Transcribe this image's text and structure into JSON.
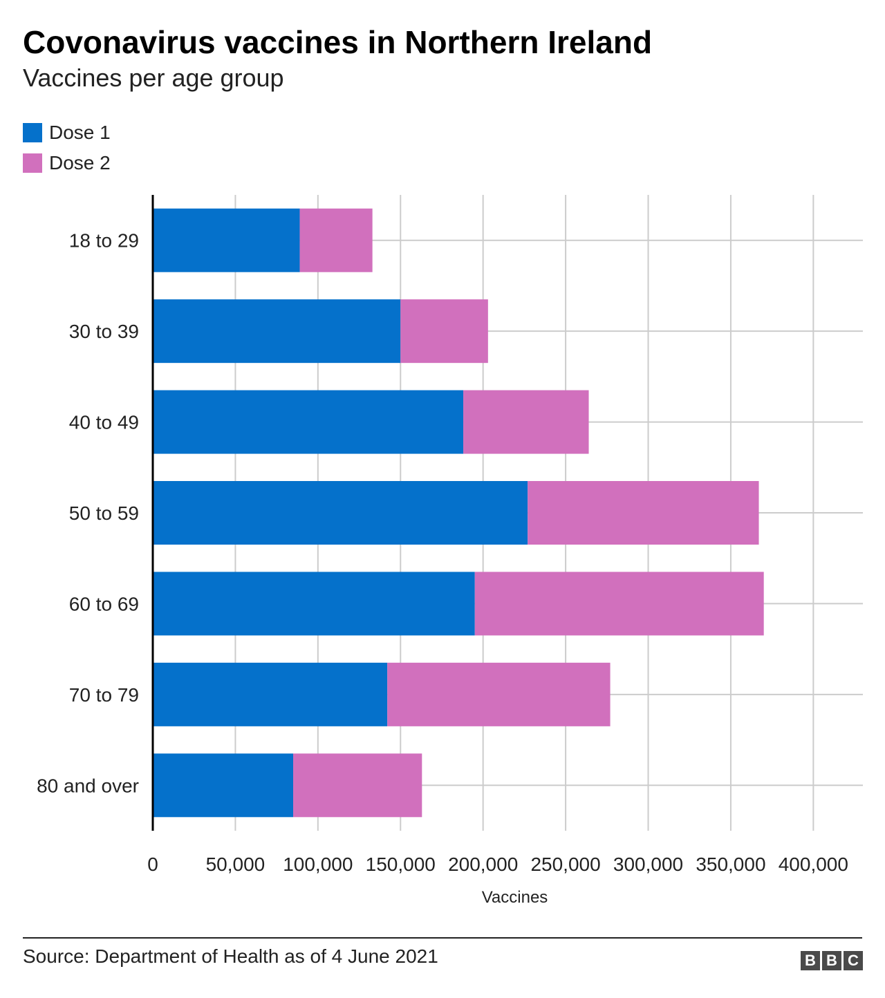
{
  "title": "Covonavirus vaccines in Northern Ireland",
  "subtitle": "Vaccines per age group",
  "source": "Source: Department of Health as of 4 June 2021",
  "logo": [
    "B",
    "B",
    "C"
  ],
  "colors": {
    "dose1": "#0571cb",
    "dose2": "#d170bd",
    "grid": "#cccccc",
    "axis": "#000000"
  },
  "chart_data": {
    "type": "bar",
    "orientation": "horizontal",
    "stacked": true,
    "categories": [
      "18 to 29",
      "30 to 39",
      "40 to 49",
      "50 to 59",
      "60 to 69",
      "70 to 79",
      "80 and over"
    ],
    "series": [
      {
        "name": "Dose 1",
        "values": [
          89000,
          150000,
          188000,
          227000,
          195000,
          142000,
          85000
        ]
      },
      {
        "name": "Dose 2",
        "values": [
          44000,
          53000,
          76000,
          140000,
          175000,
          135000,
          78000
        ]
      }
    ],
    "xlabel": "Vaccines",
    "ylabel": "",
    "xlim": [
      0,
      430000
    ],
    "xticks": [
      0,
      50000,
      100000,
      150000,
      200000,
      250000,
      300000,
      350000,
      400000
    ],
    "xtick_labels": [
      "0",
      "50,000",
      "100,000",
      "150,000",
      "200,000",
      "250,000",
      "300,000",
      "350,000",
      "400,000"
    ],
    "grid": true,
    "legend": "top-left"
  }
}
